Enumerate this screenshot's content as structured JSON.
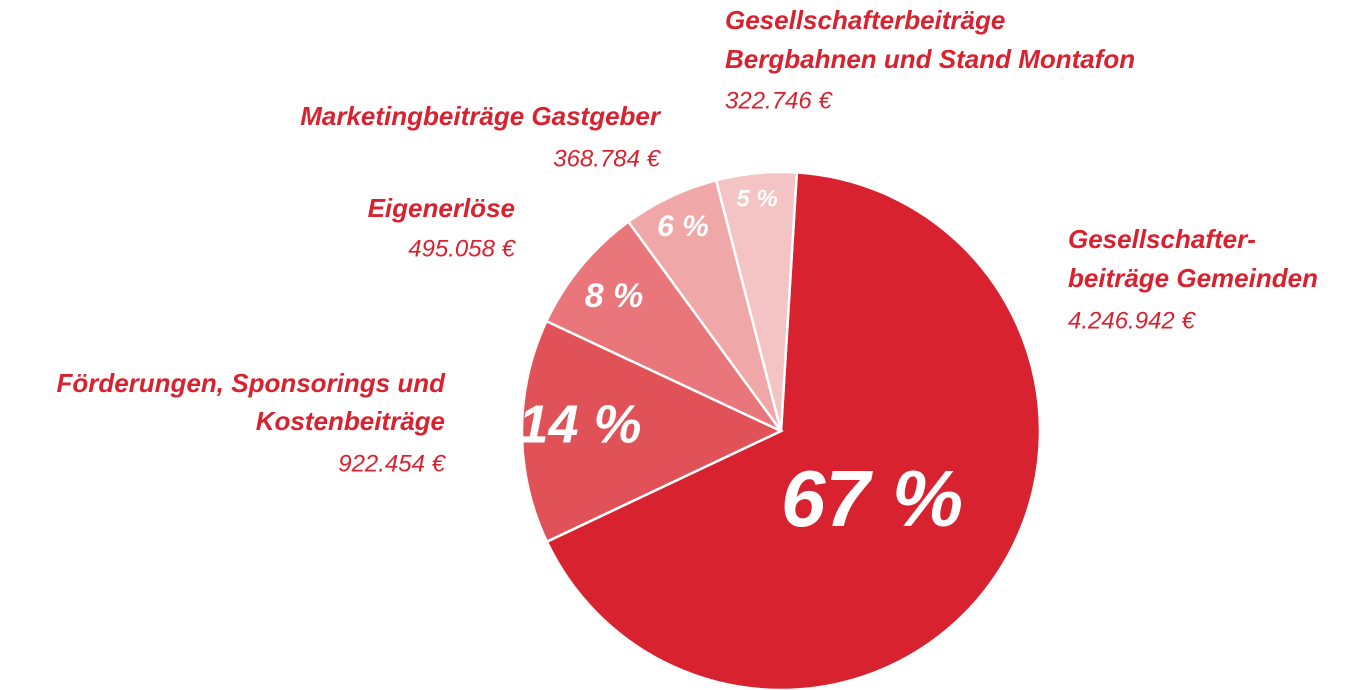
{
  "chart_data": {
    "type": "pie",
    "categories": [
      [
        "Gesellschafter-",
        "beiträge Gemeinden"
      ],
      [
        "Förderungen, Sponsorings und",
        "Kostenbeiträge"
      ],
      [
        "Eigenerlöse"
      ],
      [
        "Marketingbeiträge Gastgeber"
      ],
      [
        "Gesellschafterbeiträge",
        "Bergbahnen und Stand Montafon"
      ]
    ],
    "values": [
      67,
      14,
      8,
      6,
      5
    ],
    "value_labels": [
      "67 %",
      "14 %",
      "8 %",
      "6 %",
      "5 %"
    ],
    "amounts": [
      4246942,
      922454,
      495058,
      368784,
      322746
    ],
    "amount_labels": [
      "4.246.942 €",
      "922.454 €",
      "495.058 €",
      "368.784 €",
      "322.746 €"
    ],
    "colors": [
      "#d8222f",
      "#e05257",
      "#e8767a",
      "#f0a7a8",
      "#f3c4c3"
    ]
  }
}
